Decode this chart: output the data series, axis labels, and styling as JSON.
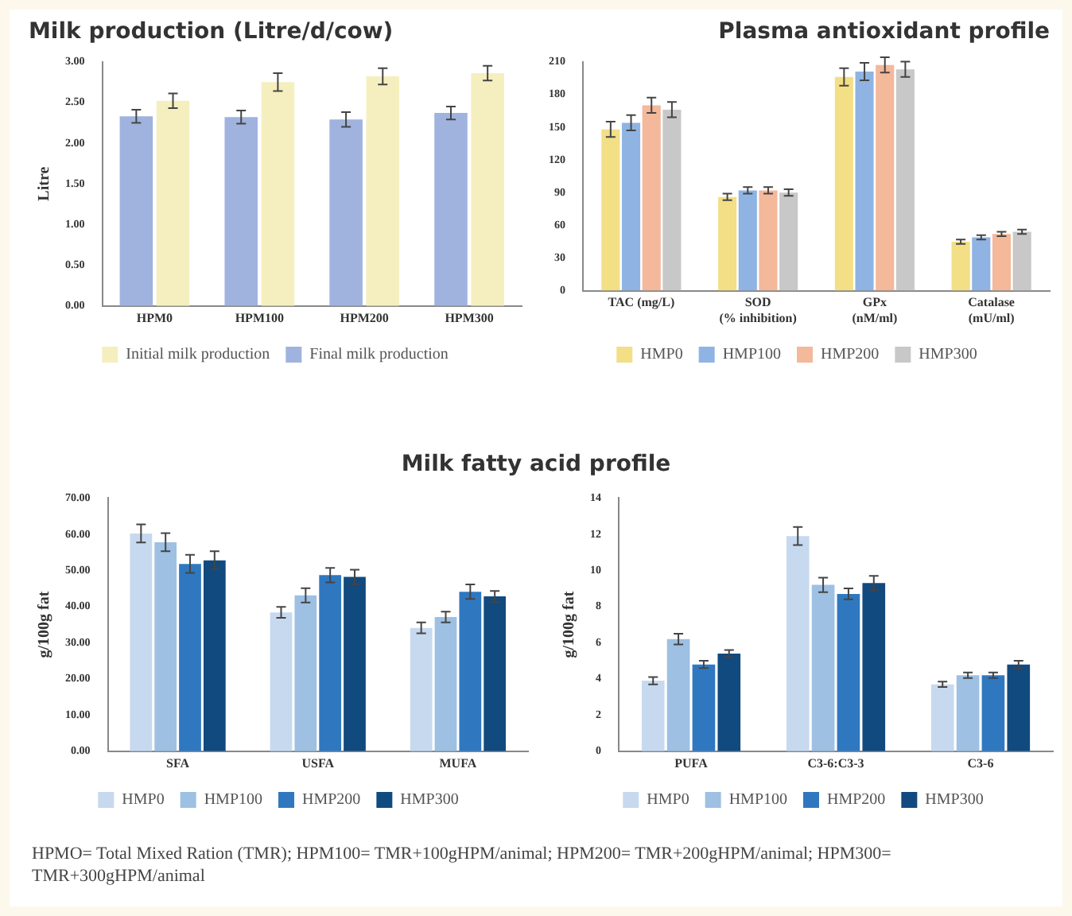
{
  "chart_data": [
    {
      "type": "bar",
      "title": "Milk production (Litre/d/cow)",
      "ylabel": "Litre",
      "categories": [
        "HPM0",
        "HPM100",
        "HPM200",
        "HPM300"
      ],
      "series": [
        {
          "name": "Final milk production",
          "color": "#9fb3de",
          "values": [
            2.33,
            2.32,
            2.29,
            2.37
          ],
          "errors": [
            0.08,
            0.08,
            0.09,
            0.08
          ]
        },
        {
          "name": "Initial milk production",
          "color": "#f5efbf",
          "values": [
            2.52,
            2.75,
            2.82,
            2.86
          ],
          "errors": [
            0.09,
            0.11,
            0.1,
            0.09
          ]
        }
      ],
      "ylim": [
        0,
        3
      ],
      "yticks": [
        {
          "value": 0,
          "label": "0.00"
        },
        {
          "value": 0.5,
          "label": "0.50"
        },
        {
          "value": 1,
          "label": "1.00"
        },
        {
          "value": 1.5,
          "label": "1.50"
        },
        {
          "value": 2,
          "label": "2.00"
        },
        {
          "value": 2.5,
          "label": "2.50"
        },
        {
          "value": 3,
          "label": "3.00"
        }
      ],
      "grid": false,
      "legend": "bottom"
    },
    {
      "type": "bar",
      "title": "Plasma antioxidant profile",
      "categories": [
        "TAC (mg/L)",
        "SOD (% inhibition)",
        "GPx (nM/ml)",
        "Catalase (mU/ml)"
      ],
      "series": [
        {
          "name": "HMP0",
          "color": "#f2df86",
          "values": [
            148,
            86,
            196,
            45
          ],
          "errors": [
            7,
            3,
            8,
            2
          ]
        },
        {
          "name": "HMP100",
          "color": "#8fb4e3",
          "values": [
            154,
            92,
            201,
            49
          ],
          "errors": [
            7,
            3,
            8,
            2
          ]
        },
        {
          "name": "HMP200",
          "color": "#f4b89a",
          "values": [
            170,
            92,
            207,
            52
          ],
          "errors": [
            7,
            3,
            7,
            2
          ]
        },
        {
          "name": "HMP300",
          "color": "#c8c8c8",
          "values": [
            166,
            90,
            203,
            54
          ],
          "errors": [
            7,
            3,
            7,
            2
          ]
        }
      ],
      "ylim": [
        0,
        210
      ],
      "yticks": [
        0,
        30,
        60,
        90,
        120,
        150,
        180,
        210
      ],
      "grid": false,
      "legend": "bottom"
    },
    {
      "type": "bar",
      "title": "Milk fatty acid profile",
      "ylabel": "g/100g fat",
      "categories": [
        "SFA",
        "USFA",
        "MUFA"
      ],
      "series": [
        {
          "name": "HMP0",
          "color": "#c6d9ef",
          "values": [
            60.2,
            38.4,
            34.1
          ],
          "errors": [
            2.5,
            1.5,
            1.5
          ]
        },
        {
          "name": "HMP100",
          "color": "#9dc0e3",
          "values": [
            57.8,
            43.1,
            37.1
          ],
          "errors": [
            2.5,
            2,
            1.5
          ]
        },
        {
          "name": "HMP200",
          "color": "#2f78c0",
          "values": [
            51.8,
            48.7,
            44.1
          ],
          "errors": [
            2.5,
            2,
            2
          ]
        },
        {
          "name": "HMP300",
          "color": "#114a7e",
          "values": [
            52.8,
            48.2,
            42.8
          ],
          "errors": [
            2.5,
            2,
            1.5
          ]
        }
      ],
      "ylim": [
        0,
        70
      ],
      "yticks": [
        {
          "value": 0,
          "label": "0.00"
        },
        {
          "value": 10,
          "label": "10.00"
        },
        {
          "value": 20,
          "label": "20.00"
        },
        {
          "value": 30,
          "label": "30.00"
        },
        {
          "value": 40,
          "label": "40.00"
        },
        {
          "value": 50,
          "label": "50.00"
        },
        {
          "value": 60,
          "label": "60.00"
        },
        {
          "value": 70,
          "label": "70.00"
        }
      ],
      "grid": false,
      "legend": "bottom"
    },
    {
      "type": "bar",
      "ylabel": "g/100g fat",
      "categories": [
        "PUFA",
        "C3-6:C3-3",
        "C3-6"
      ],
      "series": [
        {
          "name": "HMP0",
          "color": "#c6d9ef",
          "values": [
            3.9,
            11.9,
            3.7
          ],
          "errors": [
            0.2,
            0.5,
            0.15
          ]
        },
        {
          "name": "HMP100",
          "color": "#9dc0e3",
          "values": [
            6.2,
            9.2,
            4.2
          ],
          "errors": [
            0.3,
            0.4,
            0.15
          ]
        },
        {
          "name": "HMP200",
          "color": "#2f78c0",
          "values": [
            4.8,
            8.7,
            4.2
          ],
          "errors": [
            0.2,
            0.3,
            0.15
          ]
        },
        {
          "name": "HMP300",
          "color": "#114a7e",
          "values": [
            5.4,
            9.3,
            4.8
          ],
          "errors": [
            0.2,
            0.4,
            0.2
          ]
        }
      ],
      "ylim": [
        0,
        14
      ],
      "yticks": [
        0,
        2,
        4,
        6,
        8,
        10,
        12,
        14
      ],
      "grid": false,
      "legend": "bottom",
      "annotations": [
        "HPMO= Total Mixed Ration (TMR); HPM100= TMR+100gHPM/animal; HPM200= TMR+200gHPM/animal; HPM300= TMR+300gHPM/animal"
      ]
    }
  ]
}
